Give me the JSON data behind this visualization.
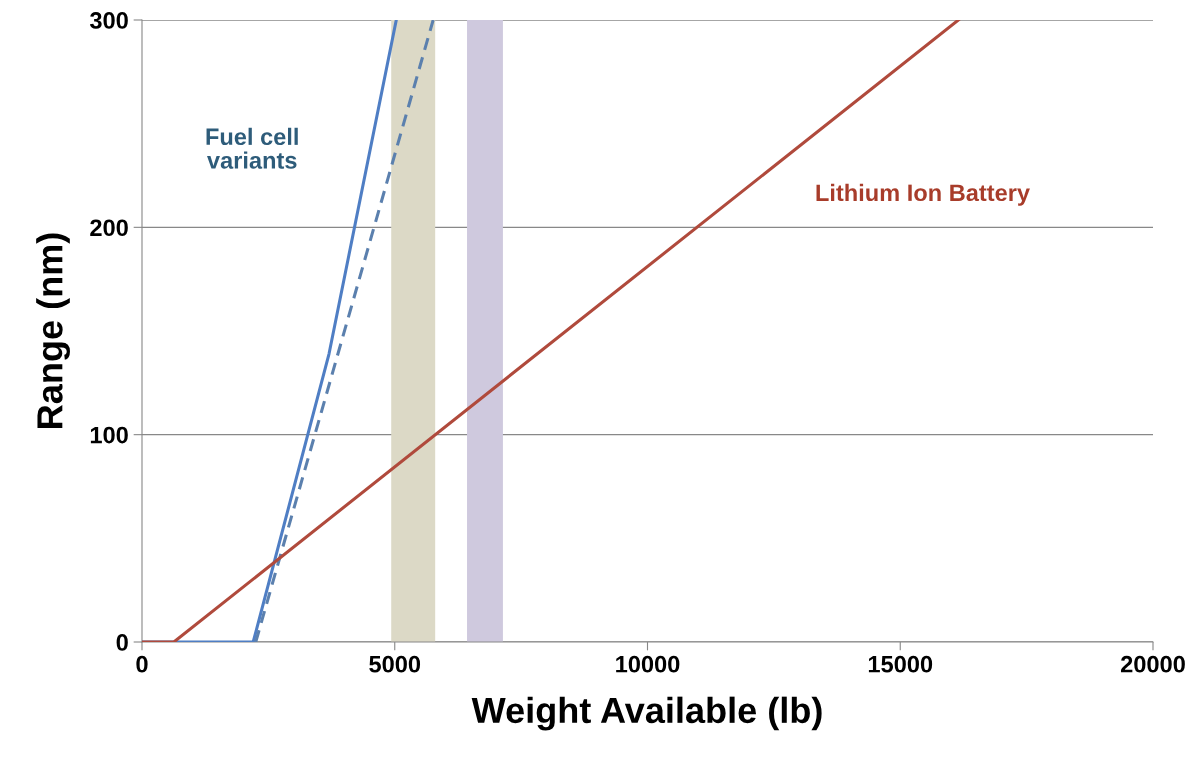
{
  "chart_data": {
    "type": "line",
    "xlabel": "Weight Available (lb)",
    "ylabel": "Range (nm)",
    "xlim": [
      0,
      20000
    ],
    "ylim": [
      0,
      300
    ],
    "xticks": [
      0,
      5000,
      10000,
      15000,
      20000
    ],
    "yticks": [
      0,
      100,
      200,
      300
    ],
    "grid": "y",
    "series": [
      {
        "color": "#4f7ec4",
        "line_style": "solid",
        "x": [
          0,
          2200,
          3700,
          5030
        ],
        "values": [
          0,
          0,
          139,
          300
        ]
      },
      {
        "color": "#5b80ae",
        "line_style": "dashed",
        "x": [
          2250,
          5760
        ],
        "values": [
          0,
          300
        ]
      },
      {
        "color": "#b04a3c",
        "line_style": "solid",
        "x": [
          0,
          630,
          16150
        ],
        "values": [
          0,
          0,
          300
        ]
      }
    ],
    "bands": [
      {
        "axis": "x",
        "from": 4930,
        "to": 5800,
        "color": "#dcd9c6"
      },
      {
        "axis": "x",
        "from": 6430,
        "to": 7140,
        "color": "#cfc9de"
      }
    ],
    "annotations": [
      "Fuel cell\nvariants",
      "Lithium Ion Battery"
    ]
  }
}
